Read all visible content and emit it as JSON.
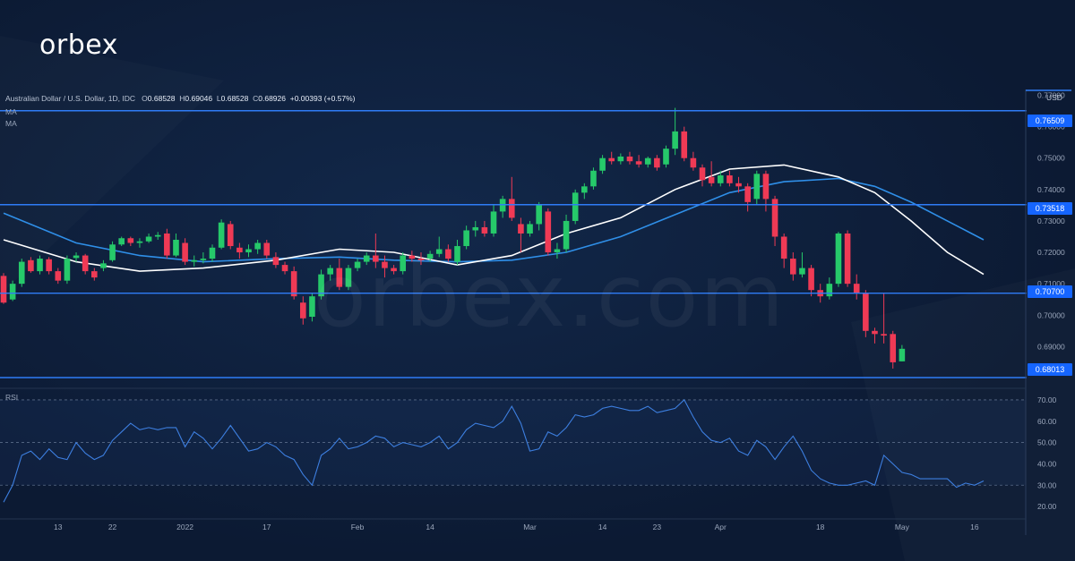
{
  "brand": {
    "logo_text": "orbex",
    "watermark_text": "orbex.com"
  },
  "legend": {
    "symbol": "Australian Dollar / U.S. Dollar, 1D, IDC",
    "o_label": "O",
    "o_value": "0.68528",
    "h_label": "H",
    "h_value": "0.69046",
    "l_label": "L",
    "l_value": "0.68528",
    "c_label": "C",
    "c_value": "0.68926",
    "change": "+0.00393 (+0.57%)",
    "ma1": "MA",
    "ma2": "MA"
  },
  "price_axis": {
    "unit": "USD"
  },
  "rsi": {
    "label": "RSI"
  },
  "colors": {
    "up": "#26c96a",
    "down": "#ef3a55",
    "ma_fast": "#ffffff",
    "ma_slow": "#2f8fe8",
    "level": "#2f7cf6",
    "rsi": "#3d7fe0",
    "badge": "#1565ff"
  },
  "levels": [
    {
      "value": 0.76509,
      "label": "0.76509"
    },
    {
      "value": 0.73518,
      "label": "0.73518"
    },
    {
      "value": 0.707,
      "label": "0.70700"
    },
    {
      "value": 0.68013,
      "label": "0.68013"
    }
  ],
  "chart_data": [
    {
      "type": "candlestick",
      "symbol": "AUD/USD",
      "timeframe": "1D",
      "ylim": [
        0.677,
        0.771
      ],
      "y_ticks": [
        "0.77000",
        "0.76000",
        "0.75000",
        "0.74000",
        "0.73000",
        "0.72000",
        "0.71000",
        "0.70000",
        "0.69000"
      ],
      "x_ticks": [
        "13",
        "22",
        "2022",
        "17",
        "Feb",
        "14",
        "Mar",
        "14",
        "23",
        "Apr",
        "18",
        "May",
        "16"
      ],
      "candles": [
        [
          0.7125,
          0.7134,
          0.7036,
          0.704
        ],
        [
          0.705,
          0.711,
          0.7045,
          0.71
        ],
        [
          0.71,
          0.718,
          0.709,
          0.717
        ],
        [
          0.7175,
          0.7185,
          0.7135,
          0.714
        ],
        [
          0.714,
          0.719,
          0.713,
          0.718
        ],
        [
          0.7178,
          0.7185,
          0.713,
          0.714
        ],
        [
          0.714,
          0.715,
          0.71,
          0.711
        ],
        [
          0.711,
          0.719,
          0.71,
          0.718
        ],
        [
          0.7182,
          0.72,
          0.717,
          0.719
        ],
        [
          0.719,
          0.7195,
          0.713,
          0.714
        ],
        [
          0.714,
          0.715,
          0.711,
          0.712
        ],
        [
          0.715,
          0.7175,
          0.714,
          0.7165
        ],
        [
          0.7175,
          0.7235,
          0.717,
          0.7225
        ],
        [
          0.7225,
          0.725,
          0.722,
          0.7245
        ],
        [
          0.7245,
          0.725,
          0.722,
          0.723
        ],
        [
          0.723,
          0.7245,
          0.7215,
          0.7235
        ],
        [
          0.7235,
          0.726,
          0.723,
          0.725
        ],
        [
          0.725,
          0.7265,
          0.724,
          0.7255
        ],
        [
          0.726,
          0.7275,
          0.718,
          0.719
        ],
        [
          0.719,
          0.726,
          0.7185,
          0.724
        ],
        [
          0.723,
          0.7245,
          0.716,
          0.717
        ],
        [
          0.717,
          0.719,
          0.7155,
          0.7175
        ],
        [
          0.7175,
          0.72,
          0.7165,
          0.718
        ],
        [
          0.718,
          0.7225,
          0.717,
          0.7215
        ],
        [
          0.7215,
          0.7305,
          0.721,
          0.7295
        ],
        [
          0.729,
          0.73,
          0.721,
          0.722
        ],
        [
          0.7215,
          0.723,
          0.718,
          0.72
        ],
        [
          0.72,
          0.7225,
          0.7185,
          0.721
        ],
        [
          0.721,
          0.724,
          0.7195,
          0.723
        ],
        [
          0.723,
          0.724,
          0.718,
          0.719
        ],
        [
          0.7185,
          0.72,
          0.715,
          0.716
        ],
        [
          0.716,
          0.717,
          0.713,
          0.714
        ],
        [
          0.714,
          0.7155,
          0.705,
          0.706
        ],
        [
          0.704,
          0.706,
          0.697,
          0.699
        ],
        [
          0.6995,
          0.707,
          0.698,
          0.706
        ],
        [
          0.706,
          0.7145,
          0.705,
          0.713
        ],
        [
          0.713,
          0.716,
          0.711,
          0.715
        ],
        [
          0.715,
          0.718,
          0.708,
          0.709
        ],
        [
          0.709,
          0.716,
          0.708,
          0.715
        ],
        [
          0.715,
          0.718,
          0.714,
          0.717
        ],
        [
          0.717,
          0.72,
          0.716,
          0.719
        ],
        [
          0.719,
          0.726,
          0.715,
          0.717
        ],
        [
          0.717,
          0.719,
          0.712,
          0.715
        ],
        [
          0.715,
          0.716,
          0.713,
          0.714
        ],
        [
          0.714,
          0.72,
          0.713,
          0.719
        ],
        [
          0.719,
          0.7205,
          0.717,
          0.718
        ],
        [
          0.718,
          0.72,
          0.716,
          0.7175
        ],
        [
          0.718,
          0.7205,
          0.717,
          0.7195
        ],
        [
          0.7195,
          0.725,
          0.7185,
          0.721
        ],
        [
          0.721,
          0.7225,
          0.717,
          0.718
        ],
        [
          0.717,
          0.724,
          0.716,
          0.722
        ],
        [
          0.722,
          0.7285,
          0.721,
          0.727
        ],
        [
          0.727,
          0.73,
          0.725,
          0.728
        ],
        [
          0.728,
          0.73,
          0.725,
          0.726
        ],
        [
          0.726,
          0.735,
          0.725,
          0.733
        ],
        [
          0.733,
          0.738,
          0.731,
          0.737
        ],
        [
          0.737,
          0.744,
          0.73,
          0.731
        ],
        [
          0.729,
          0.731,
          0.72,
          0.726
        ],
        [
          0.726,
          0.73,
          0.725,
          0.729
        ],
        [
          0.729,
          0.736,
          0.727,
          0.735
        ],
        [
          0.733,
          0.734,
          0.719,
          0.72
        ],
        [
          0.72,
          0.723,
          0.718,
          0.721
        ],
        [
          0.721,
          0.732,
          0.72,
          0.73
        ],
        [
          0.73,
          0.74,
          0.729,
          0.739
        ],
        [
          0.739,
          0.742,
          0.737,
          0.741
        ],
        [
          0.741,
          0.747,
          0.74,
          0.746
        ],
        [
          0.746,
          0.751,
          0.745,
          0.75
        ],
        [
          0.75,
          0.752,
          0.748,
          0.749
        ],
        [
          0.749,
          0.7515,
          0.748,
          0.7505
        ],
        [
          0.7505,
          0.752,
          0.748,
          0.749
        ],
        [
          0.749,
          0.751,
          0.747,
          0.748
        ],
        [
          0.748,
          0.7505,
          0.747,
          0.75
        ],
        [
          0.75,
          0.751,
          0.746,
          0.747
        ],
        [
          0.748,
          0.754,
          0.747,
          0.753
        ],
        [
          0.753,
          0.766,
          0.751,
          0.7585
        ],
        [
          0.7585,
          0.76,
          0.749,
          0.75
        ],
        [
          0.75,
          0.752,
          0.746,
          0.747
        ],
        [
          0.747,
          0.748,
          0.741,
          0.743
        ],
        [
          0.744,
          0.749,
          0.741,
          0.742
        ],
        [
          0.742,
          0.746,
          0.741,
          0.7445
        ],
        [
          0.7445,
          0.746,
          0.741,
          0.742
        ],
        [
          0.742,
          0.744,
          0.739,
          0.741
        ],
        [
          0.741,
          0.742,
          0.733,
          0.736
        ],
        [
          0.737,
          0.746,
          0.735,
          0.745
        ],
        [
          0.745,
          0.746,
          0.733,
          0.737
        ],
        [
          0.737,
          0.738,
          0.722,
          0.725
        ],
        [
          0.725,
          0.726,
          0.715,
          0.718
        ],
        [
          0.718,
          0.72,
          0.711,
          0.713
        ],
        [
          0.713,
          0.72,
          0.712,
          0.715
        ],
        [
          0.715,
          0.716,
          0.706,
          0.708
        ],
        [
          0.708,
          0.71,
          0.704,
          0.706
        ],
        [
          0.706,
          0.712,
          0.705,
          0.71
        ],
        [
          0.71,
          0.7265,
          0.709,
          0.726
        ],
        [
          0.726,
          0.727,
          0.709,
          0.71
        ],
        [
          0.71,
          0.713,
          0.705,
          0.707
        ],
        [
          0.707,
          0.708,
          0.693,
          0.695
        ],
        [
          0.695,
          0.696,
          0.691,
          0.694
        ],
        [
          0.694,
          0.707,
          0.691,
          0.6935
        ],
        [
          0.694,
          0.695,
          0.683,
          0.685
        ],
        [
          0.6853,
          0.6905,
          0.6853,
          0.6893
        ]
      ],
      "ma_fast": [
        [
          0,
          0.724
        ],
        [
          8,
          0.717
        ],
        [
          15,
          0.714
        ],
        [
          22,
          0.715
        ],
        [
          30,
          0.7175
        ],
        [
          37,
          0.721
        ],
        [
          43,
          0.72
        ],
        [
          50,
          0.716
        ],
        [
          56,
          0.719
        ],
        [
          62,
          0.726
        ],
        [
          68,
          0.731
        ],
        [
          74,
          0.74
        ],
        [
          80,
          0.7465
        ],
        [
          86,
          0.7478
        ],
        [
          92,
          0.744
        ],
        [
          96,
          0.739
        ],
        [
          100,
          0.73
        ],
        [
          104,
          0.72
        ],
        [
          108,
          0.713
        ]
      ],
      "ma_slow": [
        [
          0,
          0.7325
        ],
        [
          8,
          0.723
        ],
        [
          15,
          0.719
        ],
        [
          22,
          0.717
        ],
        [
          30,
          0.718
        ],
        [
          37,
          0.7185
        ],
        [
          43,
          0.7175
        ],
        [
          50,
          0.717
        ],
        [
          56,
          0.7175
        ],
        [
          62,
          0.72
        ],
        [
          68,
          0.725
        ],
        [
          74,
          0.732
        ],
        [
          80,
          0.739
        ],
        [
          86,
          0.7425
        ],
        [
          92,
          0.7435
        ],
        [
          96,
          0.741
        ],
        [
          100,
          0.736
        ],
        [
          104,
          0.73
        ],
        [
          108,
          0.724
        ]
      ],
      "x_tick_indices": [
        6,
        12,
        20,
        29,
        39,
        47,
        58,
        66,
        72,
        79,
        90,
        99,
        107
      ]
    },
    {
      "type": "line",
      "name": "RSI",
      "ylim": [
        15,
        75
      ],
      "y_ticks": [
        "70.00",
        "60.00",
        "50.00",
        "40.00",
        "30.00",
        "20.00"
      ],
      "bands": [
        30,
        50,
        70
      ],
      "values": [
        22,
        30,
        44,
        46,
        42,
        47,
        43,
        42,
        50,
        45,
        42,
        44,
        51,
        55,
        59,
        56,
        57,
        56,
        57,
        57,
        48,
        55,
        52,
        47,
        52,
        58,
        52,
        46,
        47,
        50,
        48,
        44,
        42,
        35,
        30,
        44,
        47,
        52,
        47,
        48,
        50,
        53,
        52,
        48,
        50,
        49,
        48,
        50,
        53,
        47,
        50,
        56,
        59,
        58,
        57,
        60,
        67,
        59,
        46,
        47,
        55,
        53,
        57,
        63,
        62,
        63,
        66,
        67,
        66,
        65,
        65,
        67,
        64,
        65,
        66,
        70,
        62,
        55,
        51,
        50,
        52,
        46,
        44,
        51,
        48,
        42,
        48,
        53,
        46,
        37,
        33,
        31,
        30,
        30,
        31,
        32,
        30,
        44,
        40,
        36,
        35,
        33,
        33,
        33,
        33,
        29,
        31,
        30,
        32
      ]
    }
  ]
}
